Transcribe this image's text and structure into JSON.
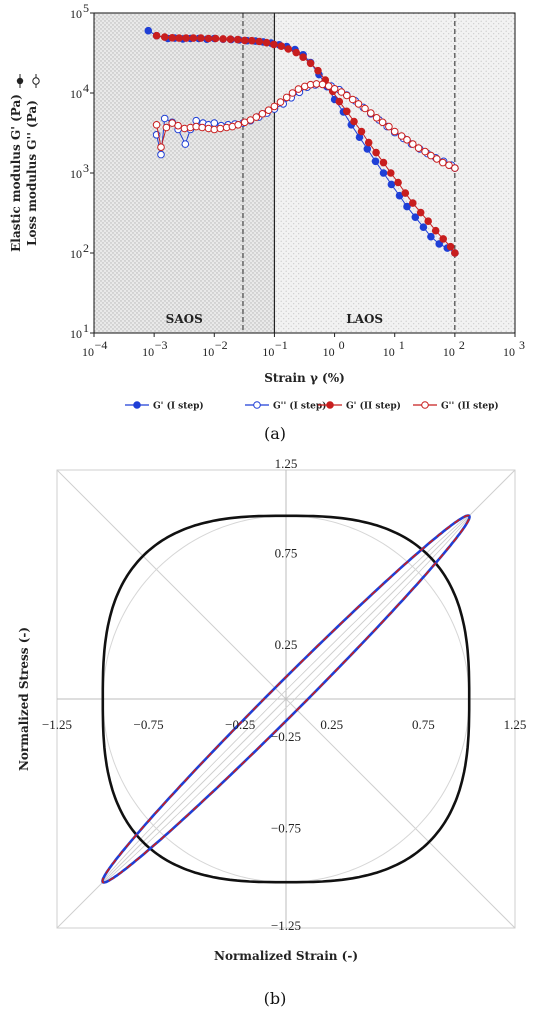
{
  "colors": {
    "blue": "#1f3fd6",
    "red": "#c81e1e",
    "black": "#111111",
    "gray": "#bbbbbb"
  },
  "caption_a": "(a)",
  "caption_b": "(b)",
  "chart_data": [
    {
      "type": "scatter",
      "xscale": "log",
      "yscale": "log",
      "xlabel": "Strain γ (%)",
      "ylabel": "Elastic modulus G' (Pa) / Loss modulus G'' (Pa)",
      "ylabel_line1": "Elastic modulus G' (Pa)",
      "ylabel_line2": "Loss modulus G'' (Pa)",
      "xlim": [
        0.0001,
        1000
      ],
      "ylim": [
        10,
        100000
      ],
      "x_ticks": [
        {
          "base": "10",
          "exp": "−4"
        },
        {
          "base": "10",
          "exp": "−3"
        },
        {
          "base": "10",
          "exp": "−2"
        },
        {
          "base": "10",
          "exp": "−1"
        },
        {
          "base": "10",
          "exp": "0"
        },
        {
          "base": "10",
          "exp": "1"
        },
        {
          "base": "10",
          "exp": "2"
        },
        {
          "base": "10",
          "exp": "3"
        }
      ],
      "y_ticks": [
        {
          "base": "10",
          "exp": "1"
        },
        {
          "base": "10",
          "exp": "2"
        },
        {
          "base": "10",
          "exp": "3"
        },
        {
          "base": "10",
          "exp": "4"
        },
        {
          "base": "10",
          "exp": "5"
        }
      ],
      "regions": [
        {
          "label": "SAOS",
          "x_from": 0.0001,
          "x_to": 0.1
        },
        {
          "label": "LAOS",
          "x_from": 0.1,
          "x_to": 1000
        }
      ],
      "vlines": [
        {
          "x": 0.1,
          "style": "solid"
        },
        {
          "x": 0.03,
          "style": "dashed"
        },
        {
          "x": 100,
          "style": "dashed"
        }
      ],
      "series": [
        {
          "name": "G' (I step)",
          "color": "#1f3fd6",
          "filled": true,
          "x": [
            0.0008,
            0.0011,
            0.0017,
            0.0022,
            0.003,
            0.004,
            0.0055,
            0.0075,
            0.01,
            0.014,
            0.019,
            0.026,
            0.035,
            0.048,
            0.065,
            0.088,
            0.12,
            0.16,
            0.22,
            0.3,
            0.4,
            0.55,
            0.75,
            1.0,
            1.4,
            1.9,
            2.6,
            3.5,
            4.8,
            6.5,
            8.8,
            12,
            16,
            22,
            30,
            40,
            55,
            75,
            100
          ],
          "y": [
            60000,
            52000,
            48000,
            48500,
            47500,
            48000,
            48000,
            47000,
            48000,
            47000,
            46500,
            46000,
            45000,
            44500,
            43500,
            42000,
            40000,
            38000,
            35000,
            30000,
            24000,
            17000,
            12000,
            8300,
            5800,
            4000,
            2800,
            2000,
            1400,
            1000,
            720,
            520,
            380,
            280,
            210,
            160,
            130,
            115,
            100
          ]
        },
        {
          "name": "G'' (I step)",
          "color": "#1f3fd6",
          "filled": false,
          "x": [
            0.0011,
            0.0013,
            0.0015,
            0.002,
            0.0025,
            0.0033,
            0.004,
            0.005,
            0.0065,
            0.008,
            0.01,
            0.013,
            0.017,
            0.022,
            0.03,
            0.04,
            0.055,
            0.075,
            0.1,
            0.14,
            0.19,
            0.26,
            0.35,
            0.48,
            0.65,
            0.88,
            1.2,
            1.6,
            2.2,
            3.0,
            4.0,
            5.5,
            7.5,
            10,
            14,
            19,
            26,
            35,
            48,
            65,
            88,
            100
          ],
          "y": [
            3000,
            1700,
            4800,
            4300,
            3500,
            2300,
            3500,
            4500,
            4200,
            4000,
            4200,
            3900,
            4000,
            4100,
            4200,
            4500,
            5000,
            5600,
            6300,
            7300,
            8700,
            10200,
            11800,
            12600,
            13000,
            12200,
            11000,
            9400,
            8000,
            6600,
            5500,
            4600,
            3800,
            3200,
            2700,
            2300,
            2000,
            1750,
            1550,
            1400,
            1250,
            1150
          ]
        },
        {
          "name": "G' (II step)",
          "color": "#c81e1e",
          "filled": true,
          "x": [
            0.0011,
            0.0015,
            0.002,
            0.0026,
            0.0034,
            0.0045,
            0.006,
            0.008,
            0.0105,
            0.014,
            0.0185,
            0.0245,
            0.032,
            0.042,
            0.056,
            0.074,
            0.098,
            0.13,
            0.17,
            0.23,
            0.3,
            0.4,
            0.53,
            0.7,
            0.93,
            1.2,
            1.6,
            2.1,
            2.8,
            3.7,
            4.9,
            6.5,
            8.6,
            11.4,
            15,
            20,
            27,
            36,
            48,
            64,
            85,
            100
          ],
          "y": [
            52000,
            50000,
            49000,
            48500,
            48500,
            48500,
            48500,
            48000,
            48000,
            47500,
            47000,
            46500,
            45500,
            45000,
            44000,
            42500,
            40500,
            38500,
            35500,
            32000,
            28000,
            23500,
            19000,
            14500,
            10500,
            7800,
            5900,
            4400,
            3300,
            2400,
            1800,
            1350,
            1000,
            760,
            560,
            420,
            320,
            250,
            190,
            150,
            120,
            100
          ]
        },
        {
          "name": "G'' (II step)",
          "color": "#c81e1e",
          "filled": false,
          "x": [
            0.0011,
            0.0013,
            0.0016,
            0.002,
            0.0025,
            0.0032,
            0.004,
            0.005,
            0.0063,
            0.008,
            0.01,
            0.0126,
            0.016,
            0.02,
            0.025,
            0.032,
            0.04,
            0.05,
            0.063,
            0.08,
            0.1,
            0.126,
            0.16,
            0.2,
            0.25,
            0.32,
            0.4,
            0.5,
            0.63,
            0.8,
            1.0,
            1.3,
            1.6,
            2.0,
            2.5,
            3.2,
            4.0,
            5.0,
            6.3,
            8.0,
            10,
            13,
            16,
            20,
            25,
            32,
            40,
            50,
            63,
            80,
            100
          ],
          "y": [
            4000,
            2100,
            3700,
            4200,
            3900,
            3600,
            3700,
            3800,
            3700,
            3600,
            3500,
            3600,
            3700,
            3800,
            4000,
            4300,
            4600,
            5000,
            5500,
            6100,
            6800,
            7700,
            8800,
            10000,
            11200,
            12100,
            12700,
            13000,
            12800,
            12200,
            11300,
            10300,
            9300,
            8300,
            7300,
            6400,
            5600,
            4900,
            4300,
            3800,
            3300,
            2900,
            2600,
            2300,
            2050,
            1850,
            1650,
            1500,
            1350,
            1250,
            1150
          ]
        }
      ]
    },
    {
      "type": "line",
      "xlabel": "Normalized Strain (-)",
      "ylabel": "Normalized Stress (-)",
      "xlim": [
        -1.25,
        1.25
      ],
      "ylim": [
        -1.25,
        1.25
      ],
      "x_tick_labels": [
        "−1.25",
        "−0.75",
        "−0.25",
        "0.25",
        "0.75",
        "1.25"
      ],
      "y_tick_labels": [
        "1.25",
        "0.75",
        "0.25",
        "−0.25",
        "−0.75",
        "−1.25"
      ],
      "x_ticks": [
        -1.25,
        -0.75,
        -0.25,
        0.25,
        0.75,
        1.25
      ],
      "y_ticks": [
        1.25,
        0.75,
        0.25,
        -0.25,
        -0.75,
        -1.25
      ],
      "curves": [
        {
          "shape": "rounded-square loop",
          "color": "#111111",
          "exponent": 2.8,
          "radius": 1.0,
          "rotation_deg": 0
        },
        {
          "shape": "thin ellipse along diagonal",
          "color_outer": "#1f3fd6",
          "color_dash": "#c81e1e",
          "major": 1.0,
          "minor": 0.06
        }
      ]
    }
  ]
}
